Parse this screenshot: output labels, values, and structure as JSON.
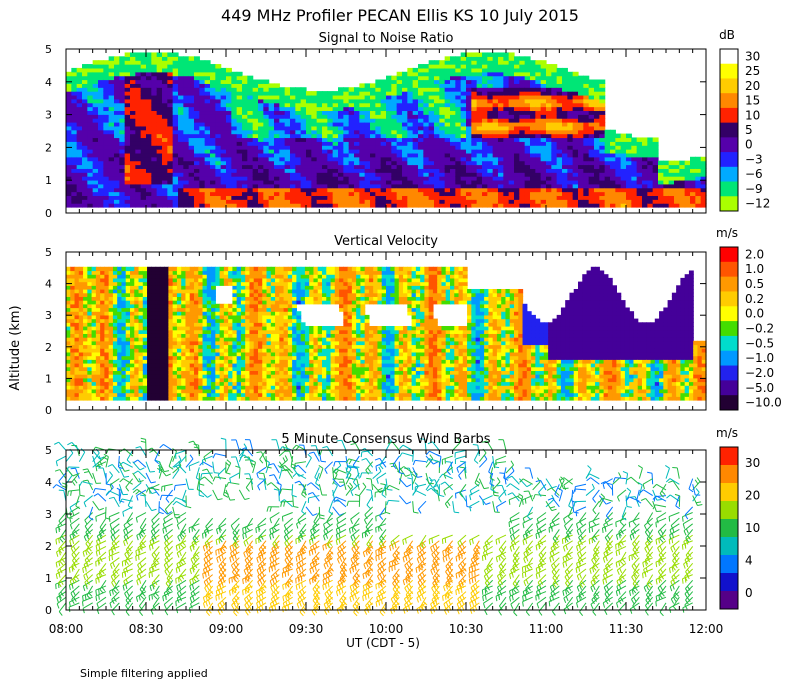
{
  "figure": {
    "title": "449 MHz Profiler PECAN Ellis KS 10 July 2015",
    "ylabel": "Altitude (km)",
    "xlabel": "UT  (CDT - 5)",
    "footnote": "Simple filtering applied",
    "x_ticks": [
      "08:00",
      "08:30",
      "09:00",
      "09:30",
      "10:00",
      "10:30",
      "11:00",
      "11:30",
      "12:00"
    ]
  },
  "chart_data": [
    {
      "type": "heatmap",
      "title": "Signal to Noise Ratio",
      "units": "dB",
      "x_range": [
        "08:00",
        "12:00"
      ],
      "ylim": [
        0,
        5
      ],
      "y_ticks": [
        0,
        1,
        2,
        3,
        4,
        5
      ],
      "colorbar": {
        "labels": [
          "30",
          "25",
          "20",
          "15",
          "10",
          "5",
          "0",
          "−3",
          "−6",
          "−9",
          "−12"
        ],
        "colors": [
          "#ffffff",
          "#ffff00",
          "#ffcc00",
          "#ff8800",
          "#ff2200",
          "#330066",
          "#5500aa",
          "#2222ff",
          "#00aaff",
          "#00e676",
          "#aaff00"
        ]
      },
      "features": "Strong returns (10-20 dB) below 1 km after 09:00; deep convective plume near 08:30 reaching 5 km; high-SNR layer 2.5-4 km between 10:30 and 11:45"
    },
    {
      "type": "heatmap",
      "title": "Vertical Velocity",
      "units": "m/s",
      "x_range": [
        "08:00",
        "12:00"
      ],
      "ylim": [
        0,
        5
      ],
      "y_ticks": [
        0,
        1,
        2,
        3,
        4,
        5
      ],
      "colorbar": {
        "labels": [
          "2.0",
          "1.0",
          "0.5",
          "0.2",
          "0.0",
          "−0.2",
          "−0.5",
          "−1.0",
          "−2.0",
          "−5.0",
          "−10.0"
        ],
        "colors": [
          "#ff0000",
          "#ff5500",
          "#ff9900",
          "#ffcc00",
          "#ffff00",
          "#44dd00",
          "#00ddcc",
          "#0099ff",
          "#2222ee",
          "#440099",
          "#220033"
        ]
      },
      "features": "Mixed updrafts/downdrafts 08:00-10:30; strong downdraft column near 08:30; precipitation fall speeds (-2 to -5 m/s) 10:45-11:50 above 1.5 km"
    },
    {
      "type": "scatter",
      "title": "5 Minute Consensus Wind Barbs",
      "units": "m/s",
      "x_range": [
        "08:00",
        "12:00"
      ],
      "ylim": [
        0,
        5
      ],
      "y_ticks": [
        0,
        1,
        2,
        3,
        4,
        5
      ],
      "colorbar": {
        "labels": [
          "30",
          "20",
          "10",
          "4",
          "0"
        ],
        "colors": [
          "#ff2200",
          "#ff8800",
          "#ffcc00",
          "#99dd00",
          "#22bb44",
          "#00bbbb",
          "#0077ff",
          "#1111cc",
          "#550088"
        ]
      },
      "features": "Strongest winds (~15-20 m/s) 0.5-2 km from 09:00 to 10:30; lighter 0-4 m/s winds above 3 km"
    }
  ]
}
